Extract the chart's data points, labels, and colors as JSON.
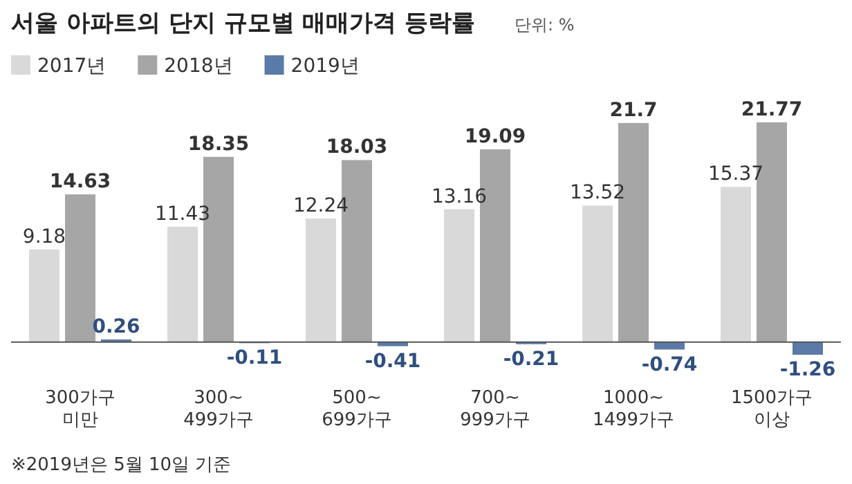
{
  "chart_data": {
    "type": "bar",
    "title": "서울 아파트의 단지 규모별 매매가격 등락률",
    "subtitle": "단위: %",
    "categories": [
      "300가구 미만",
      "300~ 499가구",
      "500~ 699가구",
      "700~ 999가구",
      "1000~ 1499가구",
      "1500가구 이상"
    ],
    "series": [
      {
        "name": "2017년",
        "color": "#d9d9d9",
        "values": [
          9.18,
          11.43,
          12.24,
          13.16,
          13.52,
          15.37
        ]
      },
      {
        "name": "2018년",
        "color": "#a6a6a6",
        "values": [
          14.63,
          18.35,
          18.03,
          19.09,
          21.7,
          21.77
        ]
      },
      {
        "name": "2019년",
        "color": "#5b7aa8",
        "values": [
          0.26,
          -0.11,
          -0.41,
          -0.21,
          -0.74,
          -1.26
        ]
      }
    ],
    "data_labels": true,
    "legend": "top left",
    "annotations": [
      "※2019년은 5월 10일 기준"
    ]
  }
}
